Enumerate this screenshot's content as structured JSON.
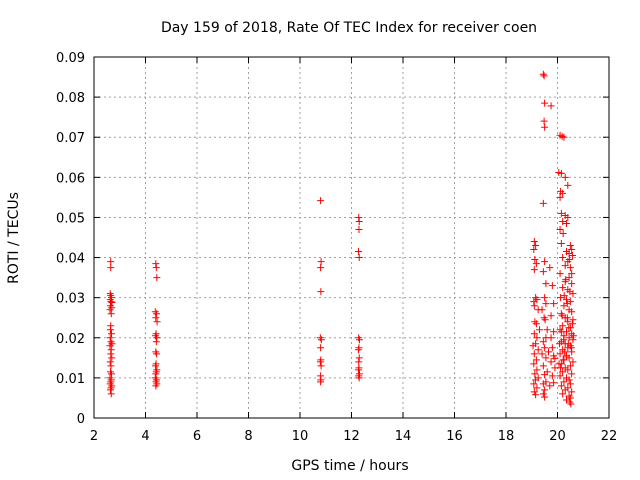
{
  "chart_data": {
    "type": "scatter",
    "title": "Day 159 of 2018, Rate Of TEC Index for receiver coen",
    "xlabel": "GPS time / hours",
    "ylabel": "ROTI / TECUs",
    "xlim": [
      2,
      22
    ],
    "ylim": [
      0,
      0.09
    ],
    "xticks": [
      "2",
      "4",
      "6",
      "8",
      "10",
      "12",
      "14",
      "16",
      "18",
      "20",
      "22"
    ],
    "yticks": [
      "0",
      "0.01",
      "0.02",
      "0.03",
      "0.04",
      "0.05",
      "0.06",
      "0.07",
      "0.08",
      "0.09"
    ],
    "grid": true,
    "marker": "+",
    "color": "#ff0000",
    "series": [
      {
        "points": [
          [
            2.65,
            0.039
          ],
          [
            2.65,
            0.0375
          ],
          [
            2.63,
            0.031
          ],
          [
            2.65,
            0.0305
          ],
          [
            2.68,
            0.03
          ],
          [
            2.63,
            0.0295
          ],
          [
            2.66,
            0.029
          ],
          [
            2.7,
            0.0288
          ],
          [
            2.64,
            0.028
          ],
          [
            2.69,
            0.0275
          ],
          [
            2.62,
            0.027
          ],
          [
            2.67,
            0.026
          ],
          [
            2.65,
            0.023
          ],
          [
            2.64,
            0.022
          ],
          [
            2.68,
            0.021
          ],
          [
            2.63,
            0.02
          ],
          [
            2.66,
            0.019
          ],
          [
            2.7,
            0.0185
          ],
          [
            2.62,
            0.018
          ],
          [
            2.67,
            0.017
          ],
          [
            2.65,
            0.016
          ],
          [
            2.69,
            0.015
          ],
          [
            2.63,
            0.014
          ],
          [
            2.66,
            0.013
          ],
          [
            2.64,
            0.0115
          ],
          [
            2.68,
            0.011
          ],
          [
            2.62,
            0.01
          ],
          [
            2.67,
            0.0095
          ],
          [
            2.65,
            0.009
          ],
          [
            2.63,
            0.0085
          ],
          [
            2.69,
            0.008
          ],
          [
            2.66,
            0.0075
          ],
          [
            2.64,
            0.007
          ],
          [
            2.67,
            0.006
          ],
          [
            4.4,
            0.0385
          ],
          [
            4.42,
            0.0375
          ],
          [
            4.44,
            0.035
          ],
          [
            4.38,
            0.0265
          ],
          [
            4.43,
            0.026
          ],
          [
            4.4,
            0.025
          ],
          [
            4.45,
            0.024
          ],
          [
            4.41,
            0.021
          ],
          [
            4.39,
            0.0205
          ],
          [
            4.44,
            0.02
          ],
          [
            4.42,
            0.019
          ],
          [
            4.4,
            0.0165
          ],
          [
            4.43,
            0.016
          ],
          [
            4.41,
            0.0135
          ],
          [
            4.39,
            0.013
          ],
          [
            4.44,
            0.012
          ],
          [
            4.42,
            0.0115
          ],
          [
            4.4,
            0.011
          ],
          [
            4.38,
            0.01
          ],
          [
            4.43,
            0.0095
          ],
          [
            4.41,
            0.009
          ],
          [
            4.44,
            0.0085
          ],
          [
            4.4,
            0.008
          ],
          [
            10.8,
            0.0542
          ],
          [
            10.82,
            0.039
          ],
          [
            10.8,
            0.0375
          ],
          [
            10.81,
            0.0315
          ],
          [
            10.79,
            0.02
          ],
          [
            10.83,
            0.0195
          ],
          [
            10.8,
            0.0175
          ],
          [
            10.81,
            0.0145
          ],
          [
            10.79,
            0.014
          ],
          [
            10.82,
            0.013
          ],
          [
            10.8,
            0.0105
          ],
          [
            10.81,
            0.0095
          ],
          [
            10.8,
            0.009
          ],
          [
            12.28,
            0.05
          ],
          [
            12.3,
            0.049
          ],
          [
            12.29,
            0.047
          ],
          [
            12.27,
            0.0415
          ],
          [
            12.3,
            0.04
          ],
          [
            12.28,
            0.02
          ],
          [
            12.31,
            0.0195
          ],
          [
            12.29,
            0.0175
          ],
          [
            12.27,
            0.017
          ],
          [
            12.3,
            0.015
          ],
          [
            12.28,
            0.014
          ],
          [
            12.29,
            0.0125
          ],
          [
            12.27,
            0.012
          ],
          [
            12.31,
            0.011
          ],
          [
            12.28,
            0.0105
          ],
          [
            12.3,
            0.01
          ],
          [
            19.45,
            0.0857
          ],
          [
            19.48,
            0.0853
          ],
          [
            19.5,
            0.0785
          ],
          [
            19.75,
            0.0778
          ],
          [
            19.48,
            0.074
          ],
          [
            19.5,
            0.0725
          ],
          [
            19.45,
            0.0535
          ],
          [
            19.1,
            0.044
          ],
          [
            19.15,
            0.043
          ],
          [
            19.08,
            0.042
          ],
          [
            19.12,
            0.0395
          ],
          [
            19.18,
            0.0385
          ],
          [
            19.1,
            0.037
          ],
          [
            19.5,
            0.039
          ],
          [
            19.45,
            0.0365
          ],
          [
            19.7,
            0.0375
          ],
          [
            19.55,
            0.0335
          ],
          [
            19.8,
            0.033
          ],
          [
            19.15,
            0.03
          ],
          [
            19.2,
            0.0295
          ],
          [
            19.08,
            0.029
          ],
          [
            19.5,
            0.03
          ],
          [
            19.55,
            0.0285
          ],
          [
            19.85,
            0.0285
          ],
          [
            19.75,
            0.0255
          ],
          [
            19.1,
            0.028
          ],
          [
            19.25,
            0.027
          ],
          [
            19.4,
            0.027
          ],
          [
            19.48,
            0.025
          ],
          [
            19.52,
            0.0245
          ],
          [
            19.12,
            0.024
          ],
          [
            19.18,
            0.0235
          ],
          [
            19.3,
            0.022
          ],
          [
            19.6,
            0.022
          ],
          [
            19.85,
            0.0215
          ],
          [
            19.1,
            0.021
          ],
          [
            19.2,
            0.02
          ],
          [
            19.55,
            0.02
          ],
          [
            19.75,
            0.02
          ],
          [
            19.45,
            0.019
          ],
          [
            19.15,
            0.0185
          ],
          [
            19.05,
            0.018
          ],
          [
            19.8,
            0.0175
          ],
          [
            19.5,
            0.0175
          ],
          [
            19.25,
            0.017
          ],
          [
            19.65,
            0.0165
          ],
          [
            19.1,
            0.016
          ],
          [
            19.4,
            0.016
          ],
          [
            19.85,
            0.0155
          ],
          [
            19.55,
            0.015
          ],
          [
            19.18,
            0.0145
          ],
          [
            19.75,
            0.014
          ],
          [
            19.08,
            0.0135
          ],
          [
            19.45,
            0.013
          ],
          [
            19.9,
            0.0125
          ],
          [
            19.2,
            0.012
          ],
          [
            19.6,
            0.0115
          ],
          [
            19.12,
            0.011
          ],
          [
            19.5,
            0.0108
          ],
          [
            19.8,
            0.0105
          ],
          [
            19.25,
            0.01
          ],
          [
            19.15,
            0.0095
          ],
          [
            19.55,
            0.009
          ],
          [
            19.08,
            0.0085
          ],
          [
            19.45,
            0.0085
          ],
          [
            19.7,
            0.008
          ],
          [
            19.2,
            0.0075
          ],
          [
            19.5,
            0.007
          ],
          [
            19.1,
            0.0065
          ],
          [
            19.45,
            0.006
          ],
          [
            19.15,
            0.0058
          ],
          [
            19.5,
            0.0052
          ],
          [
            19.85,
            0.0088
          ],
          [
            19.9,
            0.0148
          ],
          [
            20.1,
            0.0705
          ],
          [
            20.18,
            0.0702
          ],
          [
            20.25,
            0.07
          ],
          [
            20.05,
            0.0612
          ],
          [
            20.15,
            0.061
          ],
          [
            20.3,
            0.06
          ],
          [
            20.4,
            0.058
          ],
          [
            20.12,
            0.0565
          ],
          [
            20.2,
            0.056
          ],
          [
            20.1,
            0.055
          ],
          [
            20.15,
            0.051
          ],
          [
            20.3,
            0.0505
          ],
          [
            20.4,
            0.05
          ],
          [
            20.2,
            0.049
          ],
          [
            20.35,
            0.0485
          ],
          [
            20.1,
            0.047
          ],
          [
            20.22,
            0.046
          ],
          [
            20.15,
            0.0435
          ],
          [
            20.5,
            0.043
          ],
          [
            20.55,
            0.042
          ],
          [
            20.35,
            0.0415
          ],
          [
            20.45,
            0.041
          ],
          [
            20.2,
            0.04
          ],
          [
            20.58,
            0.0405
          ],
          [
            20.4,
            0.039
          ],
          [
            20.3,
            0.038
          ],
          [
            20.5,
            0.0375
          ],
          [
            20.55,
            0.036
          ],
          [
            20.1,
            0.036
          ],
          [
            20.45,
            0.035
          ],
          [
            20.3,
            0.034
          ],
          [
            20.55,
            0.0335
          ],
          [
            20.2,
            0.0325
          ],
          [
            20.4,
            0.032
          ],
          [
            20.6,
            0.031
          ],
          [
            20.12,
            0.03
          ],
          [
            20.35,
            0.0295
          ],
          [
            20.5,
            0.029
          ],
          [
            20.25,
            0.028
          ],
          [
            20.45,
            0.027
          ],
          [
            20.55,
            0.0265
          ],
          [
            20.15,
            0.026
          ],
          [
            20.3,
            0.025
          ],
          [
            20.6,
            0.0245
          ],
          [
            20.4,
            0.024
          ],
          [
            20.2,
            0.023
          ],
          [
            20.5,
            0.0225
          ],
          [
            20.1,
            0.022
          ],
          [
            20.35,
            0.0215
          ],
          [
            20.55,
            0.021
          ],
          [
            20.25,
            0.0205
          ],
          [
            20.45,
            0.02
          ],
          [
            20.6,
            0.0195
          ],
          [
            20.15,
            0.019
          ],
          [
            20.3,
            0.0185
          ],
          [
            20.5,
            0.018
          ],
          [
            20.4,
            0.0175
          ],
          [
            20.2,
            0.017
          ],
          [
            20.55,
            0.0165
          ],
          [
            20.1,
            0.016
          ],
          [
            20.35,
            0.0155
          ],
          [
            20.45,
            0.015
          ],
          [
            20.25,
            0.0145
          ],
          [
            20.6,
            0.014
          ],
          [
            20.15,
            0.0135
          ],
          [
            20.5,
            0.013
          ],
          [
            20.3,
            0.0125
          ],
          [
            20.4,
            0.012
          ],
          [
            20.2,
            0.0115
          ],
          [
            20.55,
            0.011
          ],
          [
            20.1,
            0.0105
          ],
          [
            20.35,
            0.01
          ],
          [
            20.45,
            0.0095
          ],
          [
            20.25,
            0.009
          ],
          [
            20.5,
            0.0085
          ],
          [
            20.15,
            0.008
          ],
          [
            20.4,
            0.0075
          ],
          [
            20.3,
            0.007
          ],
          [
            20.55,
            0.0065
          ],
          [
            20.2,
            0.006
          ],
          [
            20.45,
            0.0055
          ],
          [
            20.5,
            0.005
          ],
          [
            20.35,
            0.0045
          ],
          [
            20.48,
            0.004
          ],
          [
            20.52,
            0.0035
          ],
          [
            20.38,
            0.025
          ],
          [
            20.42,
            0.0185
          ],
          [
            20.28,
            0.0165
          ],
          [
            20.18,
            0.0255
          ],
          [
            20.58,
            0.0235
          ],
          [
            20.32,
            0.0345
          ],
          [
            20.48,
            0.0315
          ],
          [
            20.22,
            0.0145
          ],
          [
            20.08,
            0.0185
          ],
          [
            20.12,
            0.0125
          ],
          [
            20.62,
            0.0205
          ],
          [
            20.38,
            0.0285
          ],
          [
            20.44,
            0.0225
          ],
          [
            20.26,
            0.0305
          ],
          [
            20.16,
            0.0215
          ],
          [
            20.54,
            0.0175
          ],
          [
            20.46,
            0.0395
          ],
          [
            20.34,
            0.0155
          ],
          [
            20.24,
            0.0195
          ],
          [
            20.06,
            0.0135
          ]
        ]
      }
    ]
  }
}
